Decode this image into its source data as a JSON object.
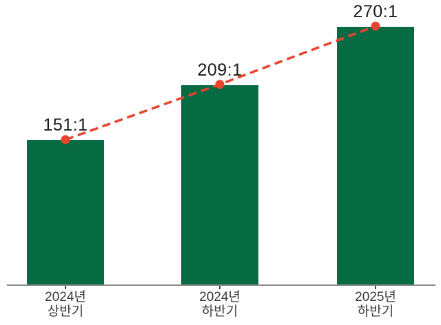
{
  "chart_data": {
    "type": "bar",
    "title": "",
    "xlabel": "",
    "ylabel": "",
    "categories": [
      "2024년 상반기",
      "2024년 하반기",
      "2025년 하반기"
    ],
    "categories_lines": [
      [
        "2024년",
        "상반기"
      ],
      [
        "2024년",
        "하반기"
      ],
      [
        "2025년",
        "하반기"
      ]
    ],
    "values": [
      151,
      209,
      270
    ],
    "value_labels": [
      "151:1",
      "209:1",
      "270:1"
    ],
    "overlay_series": {
      "type": "line",
      "style": "dashed-with-circle-markers",
      "values": [
        151,
        209,
        270
      ]
    },
    "ylim": [
      0,
      298
    ],
    "grid": false,
    "y_axis_visible": false,
    "legend": "none",
    "colors": {
      "bar": "#066b42",
      "trend_line": "#e8432d",
      "marker": "#e8432d",
      "axis_line": "#8c8c8c",
      "tick": "#444444",
      "value_label_text": "#1a1a1a",
      "category_label_text": "#3a3a3a",
      "background": "#ffffff"
    }
  }
}
